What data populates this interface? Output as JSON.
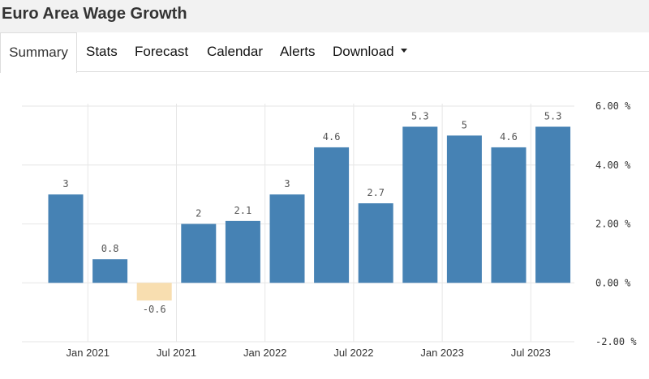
{
  "page": {
    "title": "Euro Area Wage Growth"
  },
  "tabs": [
    {
      "label": "Summary",
      "active": true
    },
    {
      "label": "Stats"
    },
    {
      "label": "Forecast"
    },
    {
      "label": "Calendar"
    },
    {
      "label": "Alerts"
    },
    {
      "label": "Download",
      "has_dropdown": true
    }
  ],
  "chart_data": {
    "type": "bar",
    "x": [
      "2020-Q4",
      "2021-Q1",
      "2021-Q2",
      "2021-Q3",
      "2021-Q4",
      "2022-Q1",
      "2022-Q2",
      "2022-Q3",
      "2022-Q4",
      "2023-Q1",
      "2023-Q2",
      "2023-Q3"
    ],
    "values": [
      3,
      0.8,
      -0.6,
      2,
      2.1,
      3,
      4.6,
      2.7,
      5.3,
      5,
      4.6,
      5.3
    ],
    "data_labels": [
      "3",
      "0.8",
      "-0.6",
      "2",
      "2.1",
      "3",
      "4.6",
      "2.7",
      "5.3",
      "5",
      "4.6",
      "5.3"
    ],
    "x_tick_labels": [
      {
        "label": "Jan 2021",
        "between": [
          "2020-Q4",
          "2021-Q1"
        ]
      },
      {
        "label": "Jul 2021",
        "between": [
          "2021-Q2",
          "2021-Q3"
        ]
      },
      {
        "label": "Jan 2022",
        "between": [
          "2021-Q4",
          "2022-Q1"
        ]
      },
      {
        "label": "Jul 2022",
        "between": [
          "2022-Q2",
          "2022-Q3"
        ]
      },
      {
        "label": "Jan 2023",
        "between": [
          "2022-Q4",
          "2023-Q1"
        ]
      },
      {
        "label": "Jul 2023",
        "between": [
          "2023-Q2",
          "2023-Q3"
        ]
      }
    ],
    "y_ticks": [
      {
        "value": -2,
        "label": "-2.00 %"
      },
      {
        "value": 0,
        "label": "0.00 %"
      },
      {
        "value": 2,
        "label": "2.00 %"
      },
      {
        "value": 4,
        "label": "4.00 %"
      },
      {
        "value": 6,
        "label": "6.00 %"
      }
    ],
    "ylim": [
      -2,
      6
    ],
    "y_axis_side": "right",
    "grid": true,
    "colors": {
      "positive": "#4682b4",
      "negative": "#f8deb0",
      "grid": "#e6e6e6"
    }
  }
}
